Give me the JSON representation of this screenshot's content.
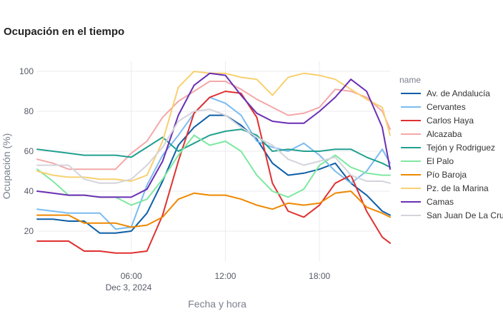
{
  "chart_data": {
    "type": "line",
    "title": "Ocupación en el tiempo",
    "xlabel": "Fecha y hora",
    "ylabel": "Ocupación (%)",
    "date_label": "Dec 3, 2024",
    "x_ticks": [
      {
        "hour": 6,
        "label": "06:00"
      },
      {
        "hour": 12,
        "label": "12:00"
      },
      {
        "hour": 18,
        "label": "18:00"
      }
    ],
    "xlim_hours": [
      0,
      22.5
    ],
    "ylim": [
      5,
      105
    ],
    "y_ticks": [
      20,
      40,
      60,
      80,
      100
    ],
    "grid": true,
    "legend": {
      "title": "name",
      "position": "right"
    },
    "x_hours": [
      0,
      1,
      2,
      3,
      4,
      5,
      6,
      7,
      8,
      9,
      10,
      11,
      12,
      13,
      14,
      15,
      16,
      17,
      18,
      19,
      20,
      21,
      22,
      22.5
    ],
    "series": [
      {
        "name": "Av. de Andalucía",
        "color": "#0d5fa8",
        "values": [
          26,
          26,
          25,
          25,
          19,
          19,
          20,
          29,
          45,
          63,
          72,
          78,
          78,
          73,
          66,
          54,
          48,
          49,
          51,
          54,
          44,
          38,
          30,
          28
        ]
      },
      {
        "name": "Cervantes",
        "color": "#7bbcf0",
        "values": [
          31,
          30,
          29,
          29,
          29,
          21,
          22,
          43,
          58,
          68,
          79,
          87,
          84,
          78,
          65,
          62,
          60,
          64,
          58,
          50,
          44,
          50,
          61,
          54
        ]
      },
      {
        "name": "Carlos Haya",
        "color": "#e03030",
        "values": [
          15,
          15,
          15,
          10,
          10,
          9,
          9,
          10,
          28,
          55,
          79,
          87,
          90,
          89,
          77,
          44,
          30,
          27,
          33,
          44,
          48,
          30,
          17,
          14
        ]
      },
      {
        "name": "Alcazaba",
        "color": "#f4a8a8",
        "values": [
          56,
          54,
          51,
          51,
          51,
          51,
          59,
          65,
          77,
          85,
          90,
          95,
          95,
          91,
          86,
          82,
          78,
          79,
          82,
          91,
          90,
          87,
          80,
          71
        ]
      },
      {
        "name": "Tejón y Rodriguez",
        "color": "#22a090",
        "values": [
          61,
          60,
          59,
          58,
          58,
          58,
          57,
          62,
          67,
          60,
          64,
          68,
          70,
          71,
          68,
          60,
          61,
          60,
          60,
          61,
          61,
          57,
          54,
          52
        ]
      },
      {
        "name": "El Palo",
        "color": "#7ee8a0",
        "values": [
          51,
          45,
          38,
          38,
          37,
          37,
          33,
          36,
          46,
          58,
          68,
          63,
          65,
          60,
          48,
          40,
          37,
          41,
          53,
          58,
          52,
          49,
          48,
          48
        ]
      },
      {
        "name": "Pío Baroja",
        "color": "#ee8800",
        "values": [
          28,
          28,
          28,
          24,
          24,
          24,
          22,
          23,
          27,
          36,
          39,
          38,
          38,
          36,
          33,
          31,
          34,
          33,
          34,
          39,
          40,
          32,
          29,
          27
        ]
      },
      {
        "name": "Pz. de la Marina",
        "color": "#f8d070",
        "values": [
          50,
          48,
          47,
          47,
          46,
          46,
          45,
          48,
          65,
          92,
          100,
          99,
          99,
          97,
          96,
          88,
          97,
          99,
          98,
          96,
          91,
          86,
          82,
          68
        ]
      },
      {
        "name": "Camas",
        "color": "#6a2fb4",
        "values": [
          40,
          39,
          38,
          38,
          37,
          37,
          37,
          41,
          55,
          78,
          93,
          99,
          98,
          88,
          79,
          75,
          74,
          74,
          80,
          87,
          96,
          90,
          72,
          51
        ]
      },
      {
        "name": "San Juan De La Cruz",
        "color": "#d4d4dc",
        "values": [
          53,
          53,
          53,
          46,
          44,
          44,
          46,
          53,
          62,
          75,
          80,
          81,
          78,
          72,
          67,
          63,
          56,
          53,
          55,
          57,
          48,
          45,
          45,
          44
        ]
      }
    ]
  }
}
